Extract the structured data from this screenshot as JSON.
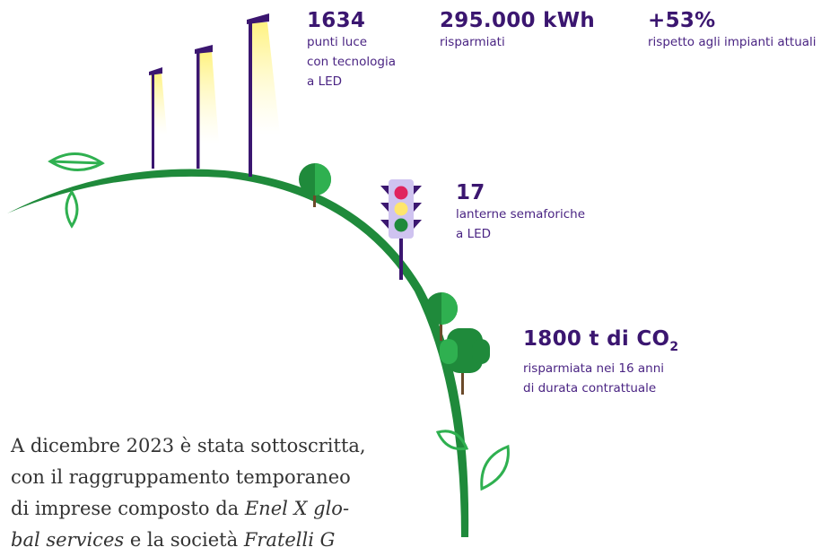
{
  "stats": [
    {
      "value": "1634",
      "label": [
        "punti luce",
        "con tecnologia",
        "a LED"
      ]
    },
    {
      "value": "295.000 kWh",
      "label": [
        "risparmiati"
      ]
    },
    {
      "value": "+53%",
      "label": [
        "rispetto agli impianti attuali"
      ]
    },
    {
      "value": "17",
      "label": [
        "lanterne semaforiche",
        "a LED"
      ]
    },
    {
      "value": "1800 t di CO",
      "subscript": "2",
      "label": [
        "risparmiata nei 16 anni",
        "di durata contrattuale"
      ]
    }
  ],
  "paragraph": [
    [
      {
        "text": "A dicembre 2023 è stata sottoscritta,",
        "italic": false
      }
    ],
    [
      {
        "text": "con il raggruppamento temporaneo",
        "italic": false
      }
    ],
    [
      {
        "text": "di imprese composto da ",
        "italic": false
      },
      {
        "text": "Enel X glo-",
        "italic": true
      }
    ],
    [
      {
        "text": "bal services",
        "italic": true
      },
      {
        "text": " e la società ",
        "italic": false
      },
      {
        "text": "Fratelli G",
        "italic": true
      }
    ]
  ]
}
